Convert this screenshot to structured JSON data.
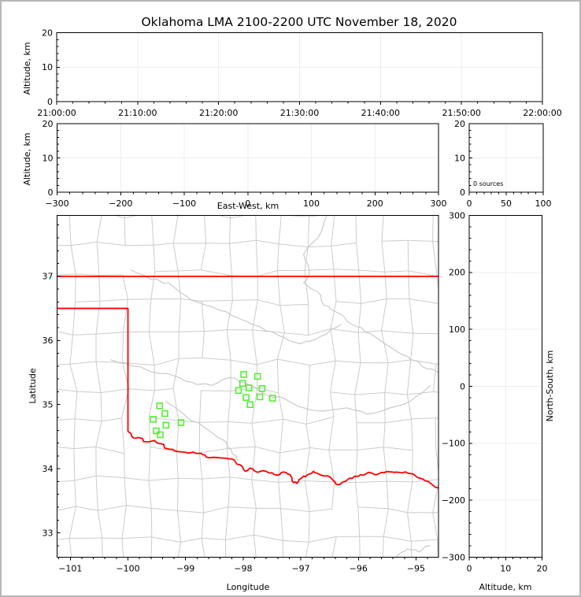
{
  "title": "Oklahoma LMA 2100-2200 UTC November 18, 2020",
  "colors": {
    "state_border": "#ff0000",
    "source_marker": "#55ee33",
    "county_lines": "#cbcbcb",
    "river_lines": "#c6c6c6",
    "grid_lines": "#ededed",
    "axis": "#000000",
    "frame": "#b7b7b7"
  },
  "chart_data": [
    {
      "id": "time_height",
      "type": "scatter",
      "ylabel": "Altitude, km",
      "xtick_labels": [
        "21:00:00",
        "21:10:00",
        "21:20:00",
        "21:30:00",
        "21:40:00",
        "21:50:00",
        "22:00:00"
      ],
      "yticks": [
        0,
        10,
        20
      ],
      "ylim": [
        0,
        20
      ],
      "points": []
    },
    {
      "id": "ew_height",
      "type": "scatter",
      "xlabel": "East-West, km",
      "ylabel": "Altitude, km",
      "xticks": [
        -300,
        -200,
        -100,
        0,
        100,
        200,
        300
      ],
      "xlim": [
        -300,
        300
      ],
      "yticks": [
        0,
        10,
        20
      ],
      "ylim": [
        0,
        20
      ],
      "points": []
    },
    {
      "id": "alt_histogram",
      "type": "line",
      "annotation": "0 sources",
      "xticks": [
        0,
        50,
        100
      ],
      "xlim": [
        0,
        100
      ],
      "yticks": [
        0,
        10,
        20
      ],
      "ylim": [
        0,
        20
      ],
      "points": []
    },
    {
      "id": "map",
      "type": "scatter",
      "xlabel": "Longitude",
      "ylabel": "Latitude",
      "xticks": [
        -101,
        -100,
        -99,
        -98,
        -97,
        -96,
        -95
      ],
      "xlim": [
        -101.23,
        -94.61
      ],
      "yticks": [
        33,
        34,
        35,
        36,
        37
      ],
      "ylim": [
        32.62,
        37.95
      ],
      "marker": "open-square",
      "sources_lon_lat": [
        [
          -97.99,
          35.47
        ],
        [
          -97.75,
          35.44
        ],
        [
          -98.01,
          35.33
        ],
        [
          -98.08,
          35.22
        ],
        [
          -97.9,
          35.26
        ],
        [
          -97.67,
          35.25
        ],
        [
          -97.71,
          35.12
        ],
        [
          -97.95,
          35.11
        ],
        [
          -97.49,
          35.1
        ],
        [
          -97.88,
          35.0
        ],
        [
          -99.45,
          34.98
        ],
        [
          -99.36,
          34.86
        ],
        [
          -99.56,
          34.77
        ],
        [
          -99.34,
          34.68
        ],
        [
          -99.08,
          34.72
        ],
        [
          -99.51,
          34.59
        ],
        [
          -99.44,
          34.53
        ]
      ],
      "borders": {
        "kansas_border_lat": 37.0,
        "panhandle_border_lat": 36.5,
        "texas_border_lon": -100.0,
        "red_river": [
          [
            -100.0,
            34.58
          ],
          [
            -99.9,
            34.48
          ],
          [
            -99.79,
            34.48
          ],
          [
            -99.69,
            34.42
          ],
          [
            -99.54,
            34.44
          ],
          [
            -99.43,
            34.39
          ],
          [
            -99.31,
            34.31
          ],
          [
            -99.19,
            34.28
          ],
          [
            -99.05,
            34.26
          ],
          [
            -98.87,
            34.26
          ],
          [
            -98.7,
            34.22
          ],
          [
            -98.59,
            34.17
          ],
          [
            -98.4,
            34.17
          ],
          [
            -98.19,
            34.15
          ],
          [
            -98.05,
            34.06
          ],
          [
            -97.96,
            33.96
          ],
          [
            -97.88,
            34.01
          ],
          [
            -97.77,
            33.95
          ],
          [
            -97.66,
            33.97
          ],
          [
            -97.53,
            33.93
          ],
          [
            -97.41,
            33.9
          ],
          [
            -97.3,
            33.95
          ],
          [
            -97.19,
            33.91
          ],
          [
            -97.15,
            33.81
          ],
          [
            -97.07,
            33.77
          ],
          [
            -96.99,
            33.85
          ],
          [
            -96.89,
            33.9
          ],
          [
            -96.78,
            33.96
          ],
          [
            -96.67,
            33.91
          ],
          [
            -96.54,
            33.89
          ],
          [
            -96.43,
            33.81
          ],
          [
            -96.35,
            33.75
          ],
          [
            -96.25,
            33.8
          ],
          [
            -96.16,
            33.85
          ],
          [
            -96.03,
            33.88
          ],
          [
            -95.91,
            33.9
          ],
          [
            -95.8,
            33.94
          ],
          [
            -95.68,
            33.91
          ],
          [
            -95.55,
            33.94
          ],
          [
            -95.42,
            33.95
          ],
          [
            -95.28,
            33.94
          ],
          [
            -95.14,
            33.93
          ],
          [
            -95.01,
            33.89
          ],
          [
            -94.88,
            33.84
          ],
          [
            -94.76,
            33.78
          ],
          [
            -94.61,
            33.7
          ]
        ]
      },
      "rivers": [
        [
          [
            -99.95,
            37.1
          ],
          [
            -99.6,
            36.95
          ],
          [
            -99.3,
            36.9
          ],
          [
            -99.0,
            36.7
          ],
          [
            -98.65,
            36.55
          ],
          [
            -98.3,
            36.45
          ],
          [
            -97.95,
            36.3
          ],
          [
            -97.6,
            36.15
          ],
          [
            -97.3,
            36.05
          ],
          [
            -97.0,
            35.95
          ],
          [
            -96.8,
            36.0
          ],
          [
            -96.55,
            36.1
          ],
          [
            -96.3,
            36.25
          ]
        ],
        [
          [
            -96.55,
            37.95
          ],
          [
            -96.7,
            37.6
          ],
          [
            -96.95,
            37.35
          ],
          [
            -96.85,
            37.1
          ],
          [
            -96.95,
            36.9
          ],
          [
            -96.7,
            36.75
          ],
          [
            -96.6,
            36.55
          ],
          [
            -96.4,
            36.45
          ],
          [
            -96.2,
            36.3
          ],
          [
            -95.95,
            36.2
          ],
          [
            -95.7,
            36.05
          ],
          [
            -95.45,
            35.9
          ],
          [
            -95.15,
            35.75
          ],
          [
            -94.9,
            35.6
          ],
          [
            -94.61,
            35.5
          ]
        ],
        [
          [
            -100.3,
            35.7
          ],
          [
            -99.9,
            35.6
          ],
          [
            -99.55,
            35.5
          ],
          [
            -99.2,
            35.45
          ],
          [
            -98.9,
            35.35
          ],
          [
            -98.55,
            35.3
          ],
          [
            -98.25,
            35.42
          ],
          [
            -97.95,
            35.33
          ],
          [
            -97.6,
            35.15
          ],
          [
            -97.3,
            35.1
          ],
          [
            -96.95,
            34.95
          ],
          [
            -96.6,
            34.9
          ],
          [
            -96.2,
            34.95
          ],
          [
            -95.85,
            34.85
          ],
          [
            -95.45,
            34.95
          ],
          [
            -95.1,
            35.05
          ],
          [
            -94.75,
            35.3
          ]
        ],
        [
          [
            -99.35,
            35.05
          ],
          [
            -99.1,
            34.9
          ],
          [
            -98.9,
            34.75
          ],
          [
            -98.6,
            34.6
          ],
          [
            -98.35,
            34.45
          ],
          [
            -98.2,
            34.28
          ],
          [
            -98.1,
            34.12
          ]
        ],
        [
          [
            -95.35,
            32.62
          ],
          [
            -95.15,
            32.75
          ],
          [
            -94.95,
            32.7
          ],
          [
            -94.75,
            32.8
          ]
        ]
      ]
    },
    {
      "id": "ns_height",
      "type": "scatter",
      "xlabel": "Altitude, km",
      "ylabel": "North-South, km",
      "xticks": [
        0,
        10,
        20
      ],
      "xlim": [
        0,
        20
      ],
      "yticks": [
        -300,
        -200,
        -100,
        0,
        100,
        200,
        300
      ],
      "ylim": [
        -300,
        300
      ],
      "points": []
    }
  ]
}
